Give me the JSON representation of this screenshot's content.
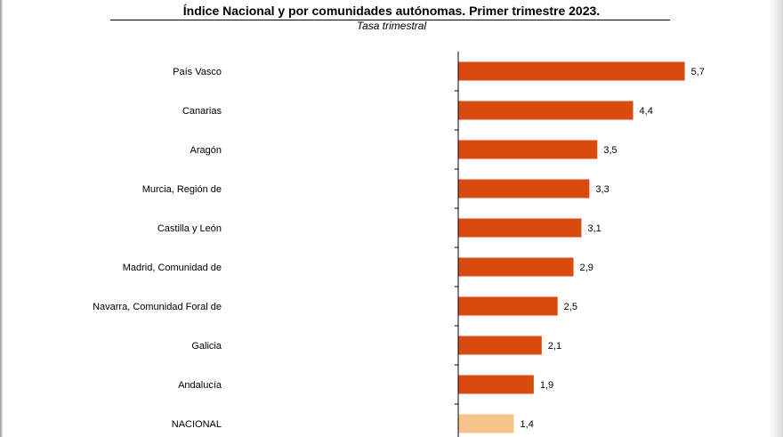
{
  "title": "Índice Nacional y por comunidades autónomas. Primer trimestre 2023.",
  "subtitle": "Tasa trimestral",
  "colors": {
    "region": "#d94a0f",
    "national": "#f5c58b",
    "axis": "#000000"
  },
  "chart_data": {
    "type": "bar",
    "orientation": "horizontal",
    "title": "Índice Nacional y por comunidades autónomas. Primer trimestre 2023.",
    "subtitle": "Tasa trimestral",
    "categories": [
      "País Vasco",
      "Canarias",
      "Aragón",
      "Murcia, Región de",
      "Castilla y León",
      "Madrid, Comunidad de",
      "Navarra, Comunidad Foral de",
      "Galicia",
      "Andalucía",
      "NACIONAL"
    ],
    "values": [
      5.7,
      4.4,
      3.5,
      3.3,
      3.1,
      2.9,
      2.5,
      2.1,
      1.9,
      1.4
    ],
    "value_labels": [
      "5,7",
      "4,4",
      "3,5",
      "3,3",
      "3,1",
      "2,9",
      "2,5",
      "2,1",
      "1,9",
      "1,4"
    ],
    "highlight": "NACIONAL",
    "xlim": [
      0,
      6.0
    ],
    "grid": false,
    "legend": "none"
  }
}
